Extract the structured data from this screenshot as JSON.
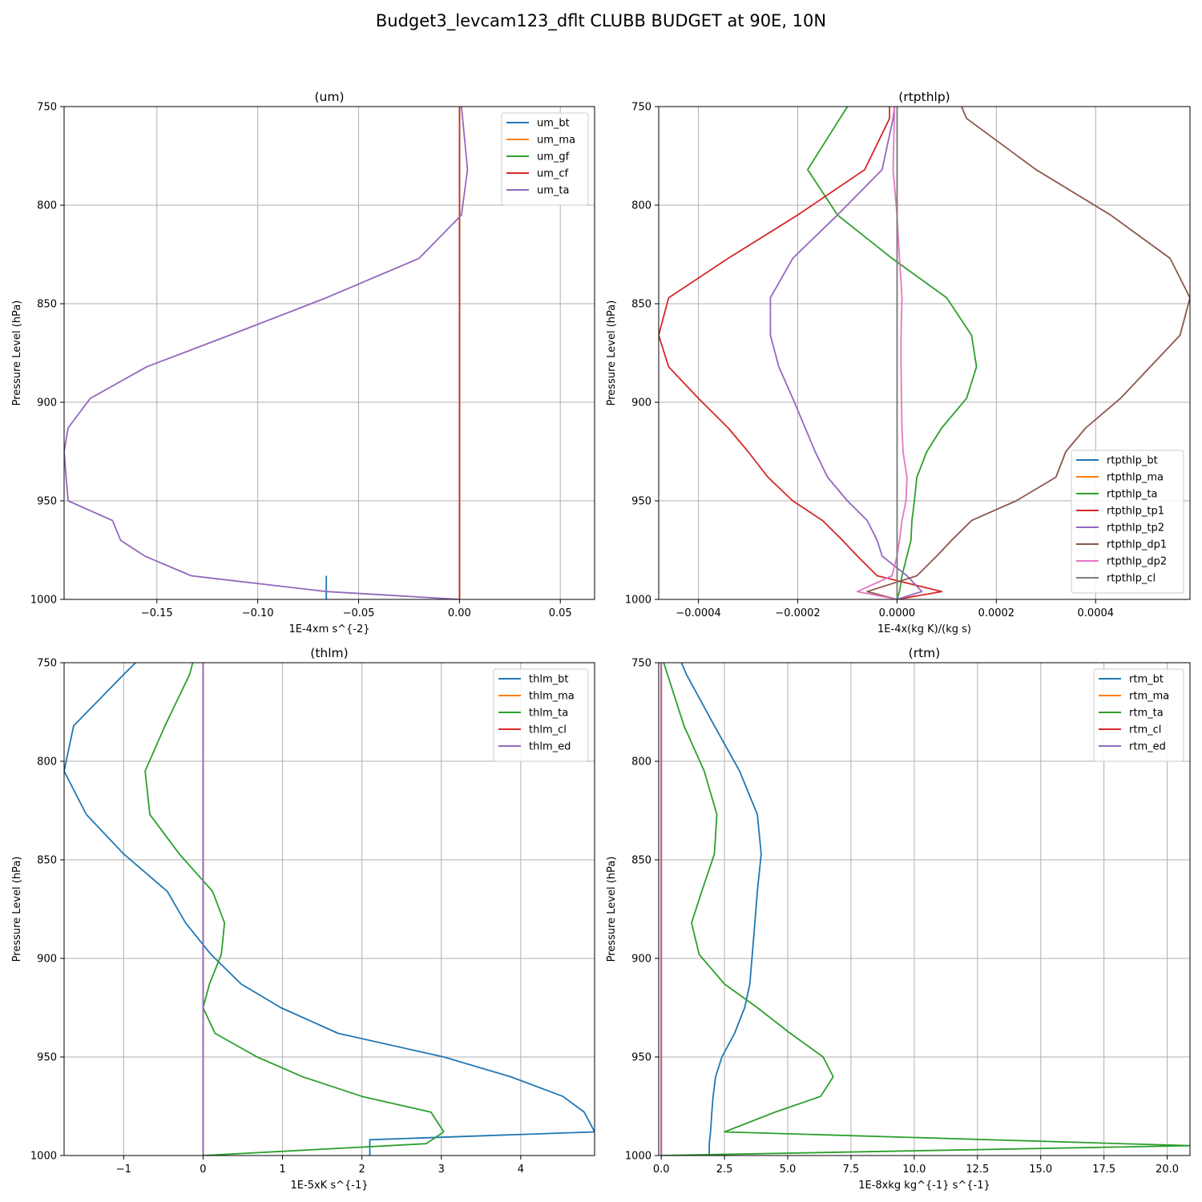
{
  "figure": {
    "suptitle": "Budget3_levcam123_dflt CLUBB BUDGET at 90E, 10N"
  },
  "colors": {
    "C0": "#1f77b4",
    "C1": "#ff7f0e",
    "C2": "#2ca02c",
    "C3": "#d62728",
    "C4": "#9467bd",
    "C5": "#8c564b",
    "C6": "#e377c2",
    "C7": "#7f7f7f",
    "grid": "#b0b0b0",
    "axis": "#000000"
  },
  "chart_data": [
    {
      "type": "line",
      "title": "(um)",
      "xlabel": "1E-4xm s^{-2}",
      "ylabel": "Pressure Level (hPa)",
      "xlim": [
        -0.196,
        0.067
      ],
      "ylim": [
        1000,
        750
      ],
      "xticks": [
        -0.15,
        -0.1,
        -0.05,
        0.0,
        0.05
      ],
      "xtick_labels": [
        "−0.15",
        "−0.10",
        "−0.05",
        "0.00",
        "0.05"
      ],
      "yticks": [
        750,
        800,
        850,
        900,
        950,
        1000
      ],
      "grid": true,
      "legend_loc": "upper right",
      "series": [
        {
          "name": "um_bt",
          "color": "C0",
          "step": true,
          "y": [
            988,
            996,
            1000
          ],
          "x": [
            -0.066,
            -0.066,
            -0.066
          ]
        },
        {
          "name": "um_ma",
          "color": "C1",
          "y": [
            750,
            1000
          ],
          "x": [
            0.0,
            0.0
          ]
        },
        {
          "name": "um_gf",
          "color": "C2",
          "y": [
            750,
            1000
          ],
          "x": [
            0.0,
            0.0
          ]
        },
        {
          "name": "um_cf",
          "color": "C3",
          "y": [
            750,
            1000
          ],
          "x": [
            0.0,
            0.0
          ]
        },
        {
          "name": "um_ta",
          "color": "C4",
          "y": [
            750,
            782,
            805,
            827,
            847,
            866,
            882,
            898,
            913,
            925,
            938,
            950,
            960,
            970,
            978,
            988,
            996,
            1000
          ],
          "x": [
            0.001,
            0.004,
            0.001,
            -0.02,
            -0.066,
            -0.114,
            -0.155,
            -0.183,
            -0.194,
            -0.196,
            -0.195,
            -0.194,
            -0.172,
            -0.168,
            -0.156,
            -0.133,
            -0.066,
            0.0
          ]
        }
      ]
    },
    {
      "type": "line",
      "title": "(rtpthlp)",
      "xlabel": "1E-4x(kg K)/(kg s)",
      "ylabel": "Pressure Level (hPa)",
      "xlim": [
        -0.00048,
        0.00059
      ],
      "ylim": [
        1000,
        750
      ],
      "xticks": [
        -0.0004,
        -0.0002,
        0.0,
        0.0002,
        0.0004
      ],
      "xtick_labels": [
        "−0.0004",
        "−0.0002",
        "0.0000",
        "0.0002",
        "0.0004"
      ],
      "yticks": [
        750,
        800,
        850,
        900,
        950,
        1000
      ],
      "grid": true,
      "legend_loc": "lower right",
      "series": [
        {
          "name": "rtpthlp_bt",
          "color": "C0",
          "y": [
            750,
            1000
          ],
          "x": [
            0.0,
            0.0
          ]
        },
        {
          "name": "rtpthlp_ma",
          "color": "C1",
          "y": [
            750,
            1000
          ],
          "x": [
            0.0,
            0.0
          ]
        },
        {
          "name": "rtpthlp_ta",
          "color": "C2",
          "y": [
            750,
            758,
            782,
            805,
            827,
            847,
            866,
            882,
            898,
            913,
            925,
            938,
            950,
            960,
            970,
            978,
            988,
            996,
            1000
          ],
          "x": [
            -0.0001,
            -0.00012,
            -0.00018,
            -0.00012,
            -1e-05,
            0.0001,
            0.00015,
            0.00016,
            0.00014,
            9e-05,
            6e-05,
            4e-05,
            3.5e-05,
            3e-05,
            2.8e-05,
            2e-05,
            1e-05,
            5e-06,
            0.0
          ]
        },
        {
          "name": "rtpthlp_tp1",
          "color": "C3",
          "y": [
            750,
            756,
            782,
            805,
            827,
            847,
            866,
            882,
            898,
            913,
            925,
            938,
            950,
            960,
            970,
            978,
            988,
            996,
            1000
          ],
          "x": [
            -1.5e-05,
            -1.5e-05,
            -6.5e-05,
            -0.0002,
            -0.00034,
            -0.00046,
            -0.00048,
            -0.00046,
            -0.0004,
            -0.00034,
            -0.0003,
            -0.00026,
            -0.00021,
            -0.00015,
            -0.00011,
            -8e-05,
            -4e-05,
            9e-05,
            0.0
          ]
        },
        {
          "name": "rtpthlp_tp2",
          "color": "C4",
          "y": [
            750,
            756,
            782,
            805,
            827,
            847,
            866,
            882,
            898,
            913,
            925,
            938,
            950,
            960,
            970,
            978,
            988,
            996,
            1000
          ],
          "x": [
            -5e-06,
            -8e-06,
            -3e-05,
            -0.00012,
            -0.00021,
            -0.000255,
            -0.000255,
            -0.000238,
            -0.00021,
            -0.000185,
            -0.000165,
            -0.00014,
            -0.0001,
            -6e-05,
            -4e-05,
            -3e-05,
            2e-05,
            5e-05,
            0.0
          ]
        },
        {
          "name": "rtpthlp_dp1",
          "color": "C5",
          "y": [
            750,
            756,
            782,
            805,
            827,
            847,
            866,
            882,
            898,
            913,
            925,
            938,
            950,
            960,
            970,
            978,
            988,
            996,
            1000
          ],
          "x": [
            0.00013,
            0.00014,
            0.00028,
            0.00043,
            0.00055,
            0.00059,
            0.00057,
            0.00051,
            0.00045,
            0.00038,
            0.00034,
            0.00032,
            0.00024,
            0.00015,
            0.00011,
            8e-05,
            4e-05,
            -6e-05,
            0.0
          ]
        },
        {
          "name": "rtpthlp_dp2",
          "color": "C6",
          "y": [
            750,
            782,
            805,
            827,
            847,
            866,
            882,
            898,
            913,
            925,
            938,
            950,
            960,
            970,
            978,
            988,
            996,
            1000
          ],
          "x": [
            -5e-06,
            -8e-06,
            0.0,
            5e-06,
            1e-05,
            8e-06,
            8e-06,
            9e-06,
            1e-05,
            1.2e-05,
            2e-05,
            1.8e-05,
            1e-05,
            5e-06,
            0.0,
            -1e-05,
            -8e-05,
            0.0
          ]
        },
        {
          "name": "rtpthlp_cl",
          "color": "C7",
          "y": [
            750,
            1000
          ],
          "x": [
            0.0,
            0.0
          ]
        }
      ]
    },
    {
      "type": "line",
      "title": "(thlm)",
      "xlabel": "1E-5xK s^{-1}",
      "ylabel": "Pressure Level (hPa)",
      "xlim": [
        -1.75,
        4.93
      ],
      "ylim": [
        1000,
        750
      ],
      "xticks": [
        -1,
        0,
        1,
        2,
        3,
        4
      ],
      "xtick_labels": [
        "−1",
        "0",
        "1",
        "2",
        "3",
        "4"
      ],
      "yticks": [
        750,
        800,
        850,
        900,
        950,
        1000
      ],
      "grid": true,
      "legend_loc": "upper right",
      "series": [
        {
          "name": "thlm_bt",
          "color": "C0",
          "y": [
            750,
            756,
            782,
            805,
            827,
            847,
            866,
            882,
            898,
            913,
            925,
            938,
            950,
            960,
            970,
            978,
            988,
            992,
            996,
            1000
          ],
          "x": [
            -0.85,
            -1.0,
            -1.63,
            -1.75,
            -1.47,
            -1.0,
            -0.45,
            -0.22,
            0.1,
            0.48,
            0.98,
            1.7,
            3.03,
            3.87,
            4.53,
            4.8,
            4.93,
            2.1,
            2.1,
            2.1
          ]
        },
        {
          "name": "thlm_ma",
          "color": "C1",
          "y": [
            750,
            1000
          ],
          "x": [
            0.0,
            0.0
          ]
        },
        {
          "name": "thlm_ta",
          "color": "C2",
          "y": [
            750,
            756,
            782,
            805,
            827,
            847,
            866,
            882,
            898,
            913,
            925,
            938,
            950,
            960,
            970,
            978,
            988,
            994,
            1000
          ],
          "x": [
            -0.13,
            -0.17,
            -0.48,
            -0.73,
            -0.67,
            -0.3,
            0.12,
            0.27,
            0.23,
            0.08,
            0.0,
            0.15,
            0.68,
            1.25,
            2.0,
            2.87,
            3.03,
            2.81,
            0.0
          ]
        },
        {
          "name": "thlm_cl",
          "color": "C3",
          "y": [
            750,
            1000
          ],
          "x": [
            0.0,
            0.0
          ]
        },
        {
          "name": "thlm_ed",
          "color": "C4",
          "y": [
            750,
            1000
          ],
          "x": [
            0.0,
            0.0
          ]
        }
      ]
    },
    {
      "type": "line",
      "title": "(rtm)",
      "xlabel": "1E-8xkg kg^{-1} s^{-1}",
      "ylabel": "Pressure Level (hPa)",
      "xlim": [
        -0.1,
        20.9
      ],
      "ylim": [
        1000,
        750
      ],
      "xticks": [
        0.0,
        2.5,
        5.0,
        7.5,
        10.0,
        12.5,
        15.0,
        17.5,
        20.0
      ],
      "xtick_labels": [
        "0.0",
        "2.5",
        "5.0",
        "7.5",
        "10.0",
        "12.5",
        "15.0",
        "17.5",
        "20.0"
      ],
      "yticks": [
        750,
        800,
        850,
        900,
        950,
        1000
      ],
      "grid": true,
      "legend_loc": "upper right",
      "series": [
        {
          "name": "rtm_bt",
          "color": "C0",
          "y": [
            750,
            756,
            782,
            805,
            827,
            847,
            866,
            882,
            898,
            913,
            925,
            938,
            950,
            960,
            970,
            978,
            988,
            994,
            1000
          ],
          "x": [
            0.8,
            1.0,
            2.1,
            3.1,
            3.8,
            3.95,
            3.8,
            3.7,
            3.6,
            3.5,
            3.3,
            2.9,
            2.4,
            2.15,
            2.05,
            2.0,
            1.95,
            1.9,
            1.9
          ]
        },
        {
          "name": "rtm_ma",
          "color": "C1",
          "y": [
            750,
            1000
          ],
          "x": [
            0.0,
            0.0
          ]
        },
        {
          "name": "rtm_ta",
          "color": "C2",
          "y": [
            750,
            756,
            782,
            805,
            827,
            847,
            866,
            882,
            898,
            913,
            925,
            938,
            950,
            960,
            970,
            978,
            988,
            995,
            1000
          ],
          "x": [
            0.1,
            0.25,
            0.9,
            1.7,
            2.2,
            2.1,
            1.6,
            1.2,
            1.5,
            2.5,
            3.8,
            5.1,
            6.4,
            6.8,
            6.3,
            4.5,
            2.5,
            20.9,
            0.0
          ]
        },
        {
          "name": "rtm_cl",
          "color": "C3",
          "y": [
            750,
            1000
          ],
          "x": [
            0.0,
            0.0
          ]
        },
        {
          "name": "rtm_ed",
          "color": "C4",
          "y": [
            750,
            1000
          ],
          "x": [
            0.0,
            0.0
          ]
        }
      ]
    }
  ]
}
